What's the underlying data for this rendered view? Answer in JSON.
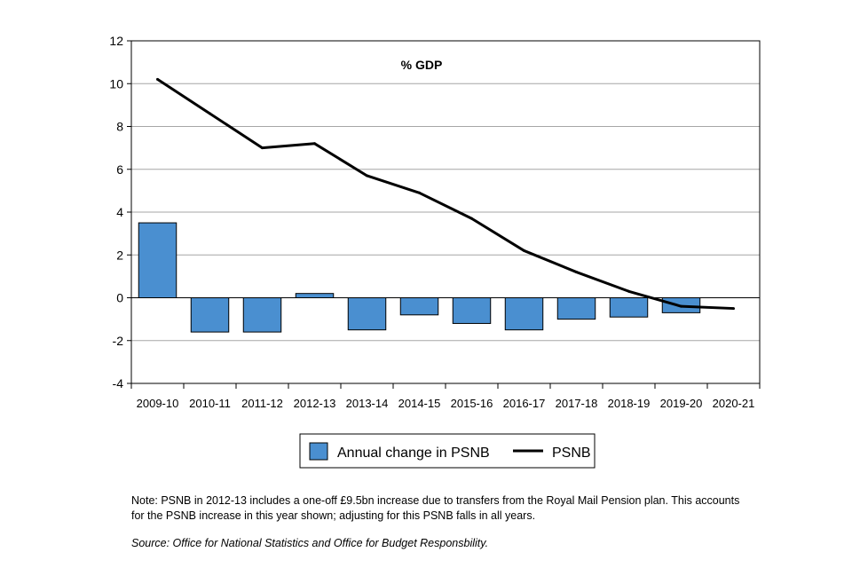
{
  "chart_data": {
    "type": "bar+line",
    "title": "% GDP",
    "categories": [
      "2009-10",
      "2010-11",
      "2011-12",
      "2012-13",
      "2013-14",
      "2014-15",
      "2015-16",
      "2016-17",
      "2017-18",
      "2018-19",
      "2019-20",
      "2020-21"
    ],
    "series": [
      {
        "name": "Annual change in PSNB",
        "type": "bar",
        "values": [
          3.5,
          -1.6,
          -1.6,
          0.2,
          -1.5,
          -0.8,
          -1.2,
          -1.5,
          -1.0,
          -0.9,
          -0.7,
          null
        ]
      },
      {
        "name": "PSNB",
        "type": "line",
        "values": [
          10.2,
          8.6,
          7.0,
          7.2,
          5.7,
          4.9,
          3.7,
          2.2,
          1.2,
          0.3,
          -0.4,
          -0.5
        ]
      }
    ],
    "ylim": [
      -4,
      12
    ],
    "yticks": [
      -4,
      -2,
      0,
      2,
      4,
      6,
      8,
      10,
      12
    ],
    "grid": true,
    "legend_position": "bottom",
    "colors": {
      "bar": "#4a8fd0",
      "bar_edge": "#000000",
      "line": "#000000",
      "grid": "#a6a6a6"
    }
  },
  "footer": {
    "note": "Note: PSNB in 2012-13 includes a one-off £9.5bn increase due to transfers from the Royal Mail Pension plan. This accounts for the PSNB increase in this year shown; adjusting for this PSNB falls in all years.",
    "source": "Source: Office for National Statistics and Office for Budget Responsbility."
  }
}
